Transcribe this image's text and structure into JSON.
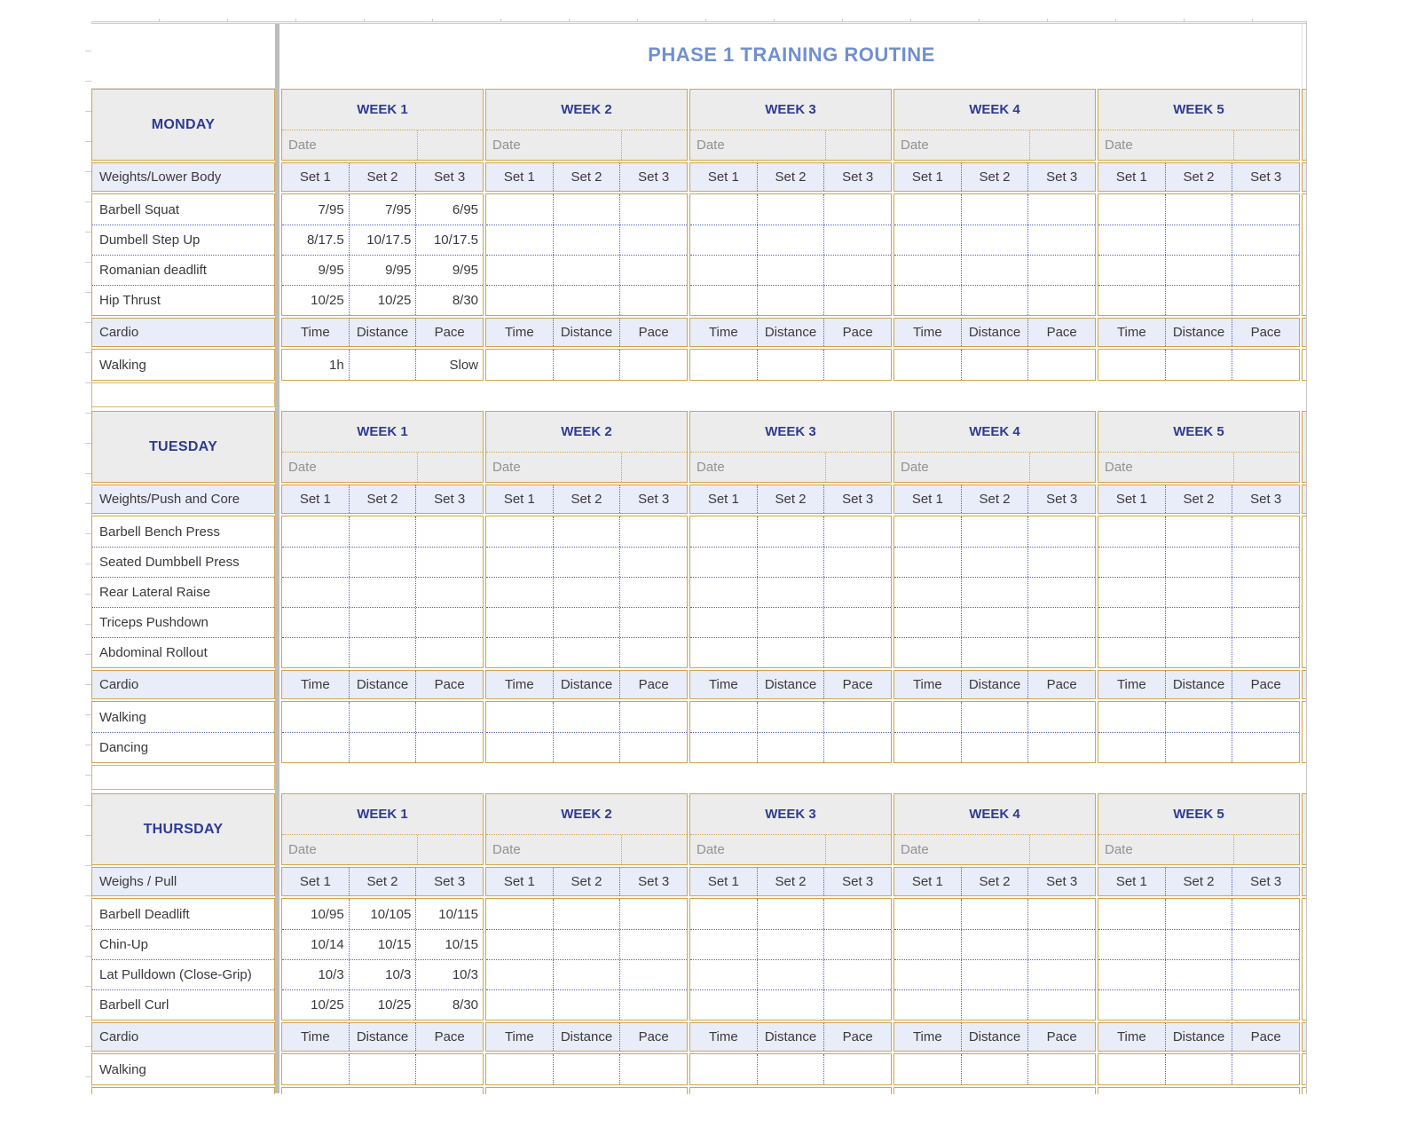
{
  "title": "PHASE 1 TRAINING ROUTINE",
  "date_label": "Date",
  "week_labels": [
    "WEEK 1",
    "WEEK 2",
    "WEEK 3",
    "WEEK 4",
    "WEEK 5"
  ],
  "set_headers": [
    "Set 1",
    "Set 2",
    "Set 3"
  ],
  "cardio_headers": [
    "Time",
    "Distance",
    "Pace"
  ],
  "sections": [
    {
      "day": "MONDAY",
      "strength_label": "Weights/Lower Body",
      "exercises": [
        {
          "name": "Barbell Squat",
          "week1_sets": [
            "7/95",
            "7/95",
            "6/95"
          ]
        },
        {
          "name": "Dumbell Step Up",
          "week1_sets": [
            "8/17.5",
            "10/17.5",
            "10/17.5"
          ]
        },
        {
          "name": "Romanian deadlift",
          "week1_sets": [
            "9/95",
            "9/95",
            "9/95"
          ]
        },
        {
          "name": "Hip Thrust",
          "week1_sets": [
            "10/25",
            "10/25",
            "8/30"
          ]
        }
      ],
      "cardio_label": "Cardio",
      "cardio_rows": [
        {
          "name": "Walking",
          "week1_sets": [
            "1h",
            "",
            "Slow"
          ]
        }
      ]
    },
    {
      "day": "TUESDAY",
      "strength_label": "Weights/Push and Core",
      "exercises": [
        {
          "name": "Barbell Bench Press",
          "week1_sets": [
            "",
            "",
            ""
          ]
        },
        {
          "name": "Seated Dumbbell Press",
          "week1_sets": [
            "",
            "",
            ""
          ]
        },
        {
          "name": "Rear Lateral Raise",
          "week1_sets": [
            "",
            "",
            ""
          ]
        },
        {
          "name": "Triceps Pushdown",
          "week1_sets": [
            "",
            "",
            ""
          ]
        },
        {
          "name": "Abdominal Rollout",
          "week1_sets": [
            "",
            "",
            ""
          ]
        }
      ],
      "cardio_label": "Cardio",
      "cardio_rows": [
        {
          "name": "Walking",
          "week1_sets": [
            "",
            "",
            ""
          ]
        },
        {
          "name": "Dancing",
          "week1_sets": [
            "",
            "",
            ""
          ]
        }
      ]
    },
    {
      "day": "THURSDAY",
      "strength_label": "Weighs / Pull",
      "exercises": [
        {
          "name": "Barbell Deadlift",
          "week1_sets": [
            "10/95",
            "10/105",
            "10/115"
          ]
        },
        {
          "name": "Chin-Up",
          "week1_sets": [
            "10/14",
            "10/15",
            "10/15"
          ]
        },
        {
          "name": "Lat Pulldown (Close-Grip)",
          "week1_sets": [
            "10/3",
            "10/3",
            "10/3"
          ]
        },
        {
          "name": "Barbell Curl",
          "week1_sets": [
            "10/25",
            "10/25",
            "8/30"
          ]
        }
      ],
      "cardio_label": "Cardio",
      "cardio_rows": [
        {
          "name": "Walking",
          "week1_sets": [
            "",
            "",
            ""
          ]
        }
      ]
    }
  ],
  "colors": {
    "gold": "#d3a447",
    "gold_light": "#dcb668",
    "navy": "#2c3c94",
    "title_blue": "#7090cf",
    "header_gray": "#ececec",
    "lavender": "#e9ecf9",
    "date_gray": "#919191",
    "text": "#3a3a3a",
    "dotted_blue": "#5265b8",
    "divider_gray": "#bdbdbd",
    "grid_gray": "#cdcdcd"
  }
}
